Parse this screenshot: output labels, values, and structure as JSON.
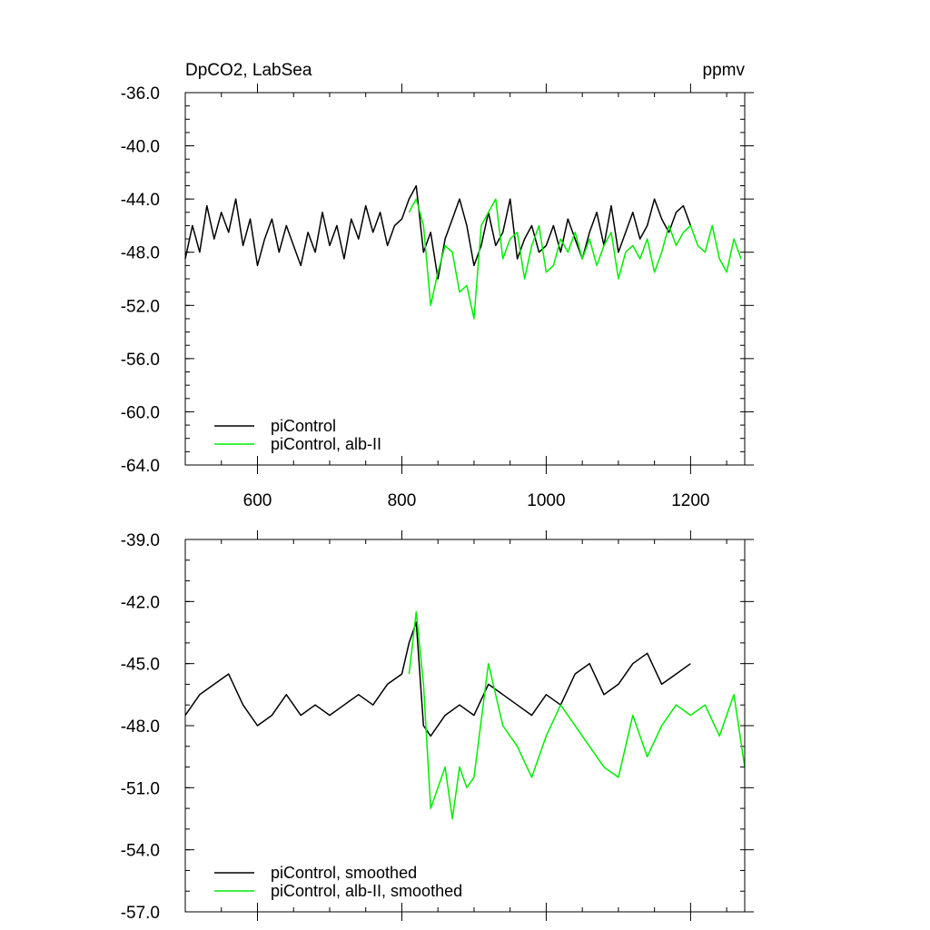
{
  "chart_data": [
    {
      "type": "line",
      "title": "DpCO2, LabSea",
      "units": "ppmv",
      "xlim": [
        500,
        1275
      ],
      "ylim": [
        -64,
        -36
      ],
      "xticks": [
        600,
        800,
        1000,
        1200
      ],
      "xtick_labels": [
        "600",
        "800",
        "1000",
        "1200"
      ],
      "yticks": [
        -36,
        -40,
        -44,
        -48,
        -52,
        -56,
        -60,
        -64
      ],
      "ytick_labels": [
        "-36.0",
        "-40.0",
        "-44.0",
        "-48.0",
        "-52.0",
        "-56.0",
        "-60.0",
        "-64.0"
      ],
      "grid": false,
      "legend_position": "bottom-left",
      "series": [
        {
          "name": "piControl",
          "color": "#000000",
          "x": [
            500,
            510,
            520,
            530,
            540,
            550,
            560,
            570,
            580,
            590,
            600,
            610,
            620,
            630,
            640,
            650,
            660,
            670,
            680,
            690,
            700,
            710,
            720,
            730,
            740,
            750,
            760,
            770,
            780,
            790,
            800,
            810,
            820,
            830,
            840,
            850,
            860,
            870,
            880,
            890,
            900,
            910,
            920,
            930,
            940,
            950,
            960,
            970,
            980,
            990,
            1000,
            1010,
            1020,
            1030,
            1040,
            1050,
            1060,
            1070,
            1080,
            1090,
            1100,
            1110,
            1120,
            1130,
            1140,
            1150,
            1160,
            1170,
            1180,
            1190,
            1200
          ],
          "y": [
            -48.5,
            -46.0,
            -48.0,
            -44.5,
            -47.0,
            -45.0,
            -46.5,
            -44.0,
            -47.5,
            -45.5,
            -49.0,
            -47.0,
            -45.5,
            -48.0,
            -46.0,
            -47.5,
            -49.0,
            -46.5,
            -48.0,
            -45.0,
            -47.5,
            -46.0,
            -48.5,
            -45.5,
            -47.0,
            -44.5,
            -46.5,
            -45.0,
            -47.5,
            -46.0,
            -45.5,
            -44.0,
            -43.0,
            -48.0,
            -46.5,
            -50.0,
            -47.0,
            -45.5,
            -44.0,
            -46.0,
            -49.0,
            -47.5,
            -45.0,
            -47.5,
            -46.5,
            -44.0,
            -48.5,
            -47.0,
            -46.0,
            -48.0,
            -47.5,
            -46.0,
            -48.0,
            -45.5,
            -47.0,
            -48.5,
            -46.5,
            -45.0,
            -47.5,
            -44.5,
            -48.0,
            -46.5,
            -45.0,
            -47.0,
            -46.0,
            -44.0,
            -45.5,
            -46.5,
            -45.0,
            -44.5,
            -46.0
          ]
        },
        {
          "name": "piControl, alb-II",
          "color": "#00ee00",
          "x": [
            810,
            820,
            830,
            840,
            850,
            860,
            870,
            880,
            890,
            900,
            910,
            920,
            930,
            940,
            950,
            960,
            970,
            980,
            990,
            1000,
            1010,
            1020,
            1030,
            1040,
            1050,
            1060,
            1070,
            1080,
            1090,
            1100,
            1110,
            1120,
            1130,
            1140,
            1150,
            1160,
            1170,
            1180,
            1190,
            1200,
            1210,
            1220,
            1230,
            1240,
            1250,
            1260,
            1270
          ],
          "y": [
            -45.0,
            -44.0,
            -46.0,
            -52.0,
            -49.5,
            -47.5,
            -48.0,
            -51.0,
            -50.5,
            -53.0,
            -46.0,
            -45.0,
            -44.0,
            -48.5,
            -47.0,
            -46.5,
            -50.0,
            -47.5,
            -46.0,
            -49.5,
            -49.0,
            -47.0,
            -48.0,
            -46.5,
            -48.5,
            -47.0,
            -49.0,
            -47.5,
            -46.5,
            -50.0,
            -48.0,
            -47.5,
            -48.5,
            -47.0,
            -49.5,
            -48.0,
            -46.0,
            -47.5,
            -46.5,
            -46.0,
            -47.5,
            -48.0,
            -46.0,
            -48.5,
            -49.5,
            -47.0,
            -48.5
          ]
        }
      ]
    },
    {
      "type": "line",
      "xlim": [
        500,
        1275
      ],
      "ylim": [
        -57,
        -39
      ],
      "xticks": [
        600,
        800,
        1000,
        1200
      ],
      "yticks": [
        -39,
        -42,
        -45,
        -48,
        -51,
        -54,
        -57
      ],
      "ytick_labels": [
        "-39.0",
        "-42.0",
        "-45.0",
        "-48.0",
        "-51.0",
        "-54.0",
        "-57.0"
      ],
      "grid": false,
      "legend_position": "bottom-left",
      "series": [
        {
          "name": "piControl, smoothed",
          "color": "#000000",
          "x": [
            500,
            520,
            540,
            560,
            580,
            600,
            620,
            640,
            660,
            680,
            700,
            720,
            740,
            760,
            780,
            800,
            810,
            820,
            830,
            840,
            860,
            880,
            900,
            920,
            940,
            960,
            980,
            1000,
            1020,
            1040,
            1060,
            1080,
            1100,
            1120,
            1140,
            1160,
            1180,
            1200
          ],
          "y": [
            -47.5,
            -46.5,
            -46.0,
            -45.5,
            -47.0,
            -48.0,
            -47.5,
            -46.5,
            -47.5,
            -47.0,
            -47.5,
            -47.0,
            -46.5,
            -47.0,
            -46.0,
            -45.5,
            -44.0,
            -43.0,
            -48.0,
            -48.5,
            -47.5,
            -47.0,
            -47.5,
            -46.0,
            -46.5,
            -47.0,
            -47.5,
            -46.5,
            -47.0,
            -45.5,
            -45.0,
            -46.5,
            -46.0,
            -45.0,
            -44.5,
            -46.0,
            -45.5,
            -45.0
          ]
        },
        {
          "name": "piControl, alb-II, smoothed",
          "color": "#00ee00",
          "x": [
            810,
            820,
            830,
            840,
            850,
            860,
            870,
            880,
            890,
            900,
            920,
            940,
            960,
            980,
            1000,
            1020,
            1040,
            1060,
            1080,
            1100,
            1120,
            1140,
            1160,
            1180,
            1200,
            1220,
            1240,
            1260,
            1275
          ],
          "y": [
            -45.5,
            -42.5,
            -46.0,
            -52.0,
            -51.0,
            -50.0,
            -52.5,
            -50.0,
            -51.0,
            -50.5,
            -45.0,
            -48.0,
            -49.0,
            -50.5,
            -48.5,
            -47.0,
            -48.0,
            -49.0,
            -50.0,
            -50.5,
            -47.5,
            -49.5,
            -48.0,
            -47.0,
            -47.5,
            -47.0,
            -48.5,
            -46.5,
            -50.0
          ]
        }
      ]
    }
  ]
}
